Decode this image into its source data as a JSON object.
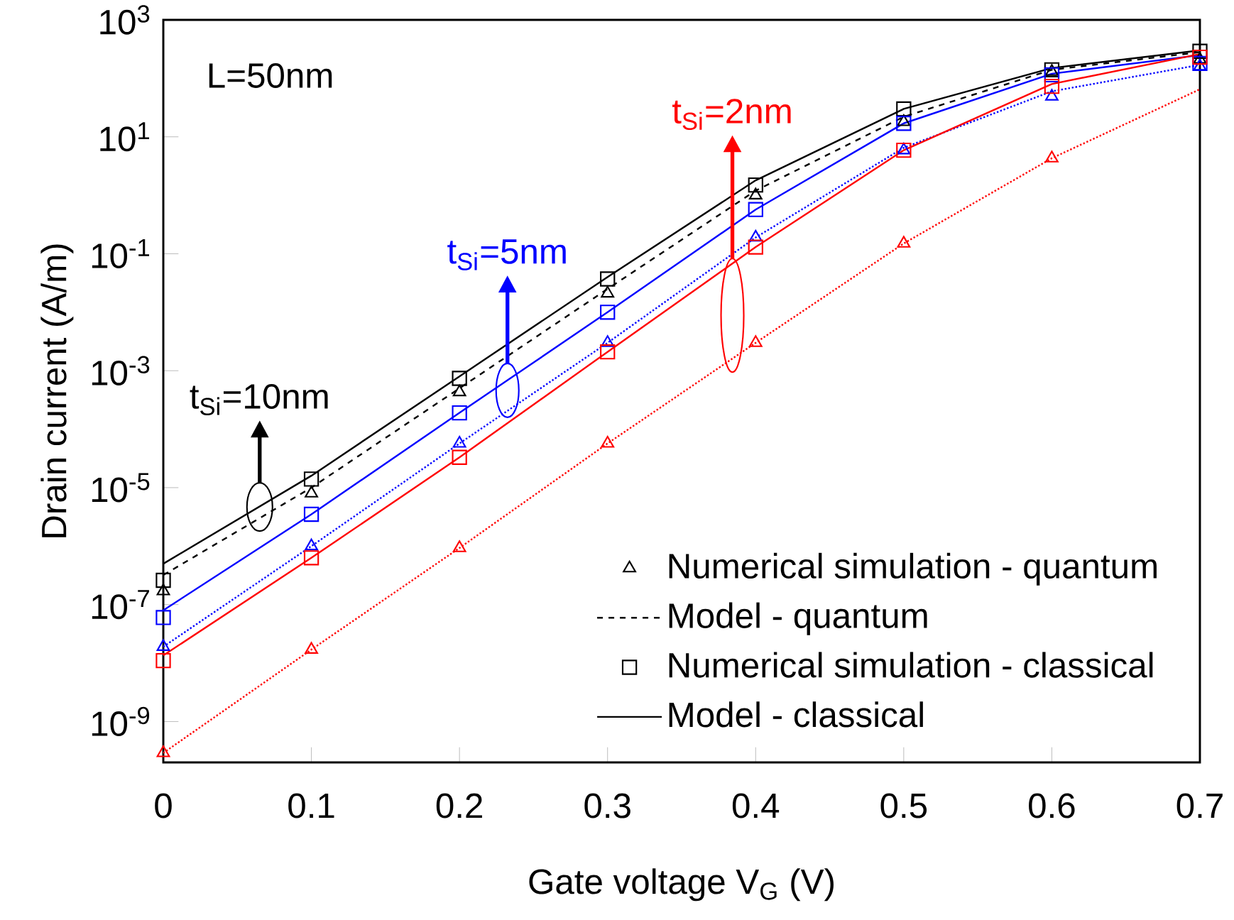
{
  "chart_data": {
    "type": "line",
    "xlabel": "Gate voltage V$_{G}$ (V)",
    "ylabel": "Drain current (A/m)",
    "x": [
      0,
      0.1,
      0.2,
      0.3,
      0.4,
      0.5,
      0.6,
      0.7
    ],
    "xlim": [
      0,
      0.7
    ],
    "xticks": [
      0,
      0.1,
      0.2,
      0.3,
      0.4,
      0.5,
      0.6,
      0.7
    ],
    "ylim": [
      2e-10,
      1000
    ],
    "log": true,
    "yticks": [
      {
        "value": 1e-09,
        "label": "10$^{-9}$"
      },
      {
        "value": 1e-07,
        "label": "10$^{-7}$"
      },
      {
        "value": 1e-05,
        "label": "10$^{-5}$"
      },
      {
        "value": 0.001,
        "label": "10$^{-3}$"
      },
      {
        "value": 0.1,
        "label": "10$^{-1}$"
      },
      {
        "value": 10,
        "label": "10$^{1}$"
      },
      {
        "value": 1000,
        "label": "10$^{3}$"
      }
    ],
    "legend": "bottom right",
    "grid": false,
    "series": [
      {
        "name": "Numerical simulation - quantum",
        "type": "scatter",
        "marker": "triangle",
        "color": "#000000",
        "values": [
          1.7e-07,
          8e-06,
          0.00043,
          0.021,
          1.0,
          18,
          130,
          210
        ]
      },
      {
        "name": "Model - quantum",
        "line_style": "dashed",
        "color": "#000000",
        "values": [
          3.2e-07,
          1e-05,
          0.0005,
          0.025,
          1.2,
          22,
          140,
          280
        ]
      },
      {
        "name": "Numerical simulation - classical",
        "type": "scatter",
        "marker": "square",
        "color": "#000000",
        "values": [
          2.6e-07,
          1.4e-05,
          0.00074,
          0.037,
          1.5,
          30,
          140,
          290
        ]
      },
      {
        "name": "Model - classical",
        "line_style": "solid",
        "color": "#000000",
        "values": [
          5e-07,
          1.6e-05,
          0.0008,
          0.04,
          1.8,
          30,
          150,
          300
        ]
      },
      {
        "type": "scatter",
        "marker": "triangle",
        "color": "#0000ff",
        "values": [
          1.9e-08,
          1e-06,
          5.7e-05,
          0.003,
          0.19,
          5.9,
          49,
          160
        ]
      },
      {
        "line_style": "dotted",
        "color": "#0000ff",
        "values": [
          1.9e-08,
          1e-06,
          5.7e-05,
          0.003,
          0.19,
          6.5,
          60,
          170
        ]
      },
      {
        "type": "scatter",
        "marker": "square",
        "color": "#0000ff",
        "values": [
          6e-08,
          3.5e-06,
          0.00019,
          0.01,
          0.57,
          17,
          115,
          180
        ]
      },
      {
        "line_style": "solid",
        "color": "#0000ff",
        "values": [
          8e-08,
          3.5e-06,
          0.00019,
          0.01,
          0.57,
          17,
          120,
          250
        ]
      },
      {
        "type": "scatter",
        "marker": "triangle",
        "color": "#ff0000",
        "values": [
          2.9e-10,
          1.7e-08,
          9.3e-07,
          5.7e-05,
          0.003,
          0.15,
          4.3,
          null
        ]
      },
      {
        "line_style": "dotted",
        "color": "#ff0000",
        "values": [
          2.9e-10,
          1.7e-08,
          9.3e-07,
          5.7e-05,
          0.003,
          0.15,
          4.3,
          65
        ]
      },
      {
        "type": "scatter",
        "marker": "square",
        "color": "#ff0000",
        "values": [
          1.1e-08,
          6.3e-07,
          3.3e-05,
          0.0021,
          0.13,
          5.9,
          73,
          230
        ]
      },
      {
        "line_style": "solid",
        "color": "#ff0000",
        "values": [
          1.35e-08,
          6.3e-07,
          3.3e-05,
          0.0021,
          0.13,
          5.9,
          80,
          260
        ]
      }
    ],
    "annotations": [
      "L=50nm",
      "t$_{Si}$=10nm",
      "t$_{Si}$=5nm",
      "t$_{Si}$=2nm"
    ]
  }
}
